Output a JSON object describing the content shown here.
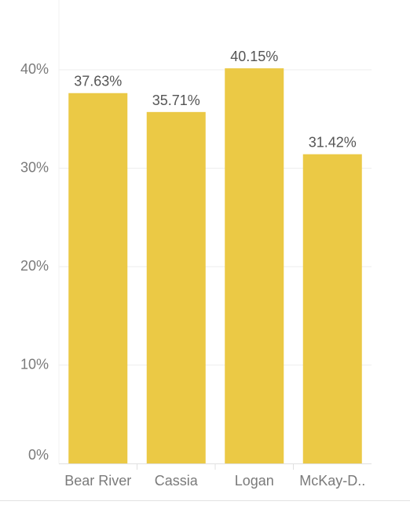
{
  "chart_data": {
    "type": "bar",
    "title": "",
    "xlabel": "",
    "ylabel": "",
    "categories": [
      "Bear River",
      "Cassia",
      "Logan",
      "McKay-D.."
    ],
    "values": [
      37.63,
      35.71,
      40.15,
      31.42
    ],
    "value_labels": [
      "37.63%",
      "35.71%",
      "40.15%",
      "31.42%"
    ],
    "yticks": [
      0,
      10,
      20,
      30,
      40
    ],
    "ytick_labels": [
      "0%",
      "10%",
      "20%",
      "30%",
      "40%"
    ],
    "ylim": [
      0,
      40
    ],
    "grid": true,
    "legend": "none"
  },
  "colors": {
    "bar": "#EBC945",
    "text": "#555555",
    "tick_text": "#7a7a7a",
    "grid": "#eeeeee",
    "axis": "#e0e0e0"
  }
}
